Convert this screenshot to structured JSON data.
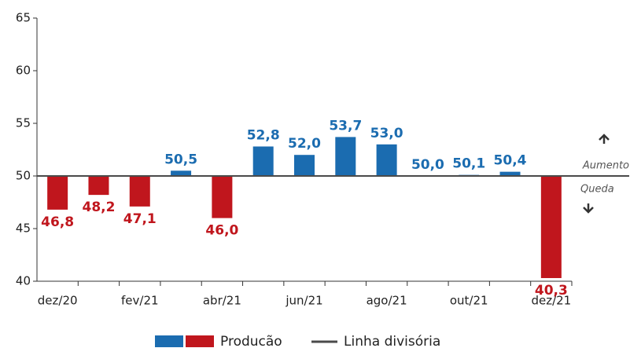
{
  "chart_data": {
    "type": "bar",
    "categories": [
      "dez/20",
      null,
      "fev/21",
      null,
      "abr/21",
      null,
      "jun/21",
      null,
      "ago/21",
      null,
      "out/21",
      null,
      "dez/21"
    ],
    "series": [
      {
        "name": "Producão",
        "colors": [
          "#1b6cb0",
          "#c0161d"
        ],
        "values": [
          46.8,
          48.2,
          47.1,
          50.5,
          46.0,
          52.8,
          52.0,
          53.7,
          53.0,
          50.0,
          50.1,
          50.4,
          40.3
        ],
        "value_labels": [
          "46,8",
          "48,2",
          "47,1",
          "50,5",
          "46,0",
          "52,8",
          "52,0",
          "53,7",
          "53,0",
          "50,0",
          "50,1",
          "50,4",
          "40,3"
        ]
      }
    ],
    "baseline": 50,
    "baseline_name": "Linha divisória",
    "baseline_color": "#4a4a4a",
    "annotations": [
      "Aumento",
      "Queda"
    ],
    "ylim": [
      40,
      65
    ],
    "yticks": [
      40,
      45,
      50,
      55,
      60,
      65
    ]
  }
}
